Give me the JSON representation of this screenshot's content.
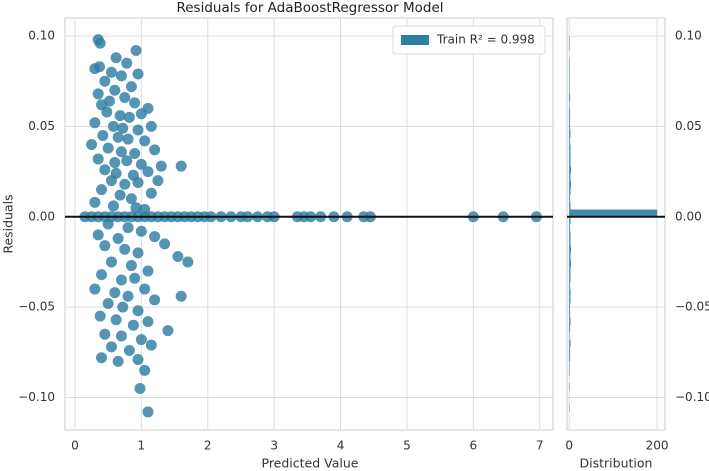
{
  "chart_data": [
    {
      "type": "scatter",
      "title": "Residuals for AdaBoostRegressor Model",
      "x_label": "Predicted Value",
      "y_label": "Residuals",
      "xlim": [
        -0.15,
        7.2
      ],
      "ylim": [
        -0.118,
        0.11
      ],
      "xticks": [
        0,
        1,
        2,
        3,
        4,
        5,
        6,
        7
      ],
      "yticks": [
        {
          "value": -0.1,
          "label": "−0.10"
        },
        {
          "value": -0.05,
          "label": "−0.05"
        },
        {
          "value": 0,
          "label": "0.00"
        },
        {
          "value": 0.05,
          "label": "0.05"
        },
        {
          "value": 0.1,
          "label": "0.10"
        }
      ],
      "grid": true,
      "legend": "upper right",
      "series": [
        {
          "name": "Train R² = 0.998",
          "color": "#2f7ea3",
          "x": [
            0.15,
            0.25,
            0.35,
            0.45,
            0.55,
            0.65,
            0.75,
            0.85,
            0.95,
            1.05,
            1.15,
            1.25,
            1.35,
            1.45,
            1.55,
            1.65,
            1.75,
            1.85,
            1.95,
            2.05,
            2.2,
            2.35,
            2.5,
            2.6,
            2.75,
            2.9,
            3.0,
            3.35,
            3.45,
            3.55,
            3.7,
            3.9,
            4.1,
            4.35,
            4.45,
            6.0,
            6.45,
            6.95,
            0.35,
            0.38,
            0.92,
            0.62,
            0.78,
            0.3,
            0.37,
            0.55,
            0.7,
            0.95,
            0.45,
            0.85,
            0.35,
            0.6,
            0.75,
            0.52,
            0.4,
            0.9,
            1.1,
            0.48,
            0.68,
            0.82,
            1.0,
            0.3,
            0.58,
            0.72,
            0.95,
            1.15,
            0.42,
            0.65,
            0.8,
            1.05,
            0.25,
            0.5,
            0.7,
            0.9,
            1.2,
            0.35,
            0.6,
            0.78,
            1.0,
            1.3,
            0.45,
            0.62,
            0.88,
            1.1,
            0.55,
            0.75,
            0.95,
            1.25,
            1.6,
            0.4,
            0.68,
            0.85,
            1.15,
            0.3,
            0.58,
            0.92,
            1.05,
            0.5,
            0.8,
            1.0,
            0.35,
            0.65,
            1.2,
            0.45,
            0.75,
            0.95,
            1.35,
            1.55,
            0.55,
            0.85,
            1.1,
            0.4,
            0.7,
            0.9,
            1.7,
            0.3,
            0.6,
            0.8,
            1.05,
            1.6,
            0.5,
            0.72,
            0.95,
            1.2,
            0.38,
            0.62,
            0.88,
            1.1,
            0.45,
            0.7,
            1.0,
            1.4,
            0.55,
            0.82,
            1.15,
            0.4,
            0.65,
            0.95,
            1.05,
            0.98,
            1.1
          ],
          "values": [
            0,
            0,
            0,
            0,
            0,
            0,
            0,
            0,
            0,
            0,
            0,
            0,
            0,
            0,
            0,
            0,
            0,
            0,
            0,
            0,
            0,
            0,
            0,
            0,
            0,
            0,
            0,
            0,
            0,
            0,
            0,
            0,
            0,
            0,
            0,
            0,
            0,
            0,
            0.098,
            0.096,
            0.092,
            0.088,
            0.085,
            0.082,
            0.083,
            0.08,
            0.078,
            0.079,
            0.075,
            0.072,
            0.068,
            0.07,
            0.066,
            0.064,
            0.062,
            0.063,
            0.06,
            0.058,
            0.056,
            0.055,
            0.057,
            0.052,
            0.05,
            0.049,
            0.048,
            0.05,
            0.045,
            0.044,
            0.043,
            0.042,
            0.04,
            0.038,
            0.036,
            0.035,
            0.037,
            0.032,
            0.03,
            0.031,
            0.029,
            0.028,
            0.026,
            0.024,
            0.023,
            0.025,
            0.02,
            0.018,
            0.019,
            0.02,
            0.028,
            0.015,
            0.012,
            0.01,
            0.013,
            0.008,
            0.006,
            0.005,
            0.004,
            -0.004,
            -0.006,
            -0.008,
            -0.01,
            -0.012,
            -0.011,
            -0.016,
            -0.018,
            -0.02,
            -0.015,
            -0.022,
            -0.025,
            -0.027,
            -0.03,
            -0.032,
            -0.035,
            -0.034,
            -0.025,
            -0.04,
            -0.042,
            -0.044,
            -0.04,
            -0.044,
            -0.048,
            -0.05,
            -0.052,
            -0.046,
            -0.055,
            -0.057,
            -0.06,
            -0.058,
            -0.065,
            -0.066,
            -0.068,
            -0.063,
            -0.072,
            -0.074,
            -0.071,
            -0.078,
            -0.08,
            -0.079,
            -0.085,
            -0.095,
            -0.108
          ]
        }
      ]
    },
    {
      "type": "histogram",
      "orientation": "horizontal",
      "x_label": "Distribution",
      "color": "#2f7ea3",
      "xlim": [
        -5,
        218
      ],
      "ylim": [
        -0.118,
        0.11
      ],
      "xticks": [
        0,
        200
      ],
      "yticks": [
        {
          "value": -0.1,
          "label": "−0.10"
        },
        {
          "value": -0.05,
          "label": "−0.05"
        },
        {
          "value": 0,
          "label": "0.00"
        },
        {
          "value": 0.05,
          "label": "0.05"
        },
        {
          "value": 0.1,
          "label": "0.10"
        }
      ],
      "grid": true,
      "bins": [
        -0.108,
        -0.104,
        -0.1,
        -0.096,
        -0.092,
        -0.088,
        -0.084,
        -0.08,
        -0.076,
        -0.072,
        -0.068,
        -0.064,
        -0.06,
        -0.056,
        -0.052,
        -0.048,
        -0.044,
        -0.04,
        -0.036,
        -0.032,
        -0.028,
        -0.024,
        -0.02,
        -0.016,
        -0.012,
        -0.008,
        -0.004,
        0,
        0.004,
        0.008,
        0.012,
        0.016,
        0.02,
        0.024,
        0.028,
        0.032,
        0.036,
        0.04,
        0.044,
        0.048,
        0.052,
        0.056,
        0.06,
        0.064,
        0.068,
        0.072,
        0.076,
        0.08,
        0.084,
        0.088,
        0.092,
        0.096,
        0.1
      ],
      "values": [
        1,
        0,
        0,
        1,
        0,
        1,
        1,
        2,
        2,
        3,
        1,
        2,
        3,
        2,
        2,
        3,
        3,
        2,
        3,
        3,
        4,
        3,
        4,
        3,
        3,
        2,
        3,
        200,
        3,
        2,
        3,
        4,
        3,
        4,
        3,
        3,
        3,
        2,
        3,
        2,
        2,
        2,
        1,
        2,
        1,
        1,
        1,
        1,
        1,
        0,
        1,
        1
      ]
    }
  ]
}
